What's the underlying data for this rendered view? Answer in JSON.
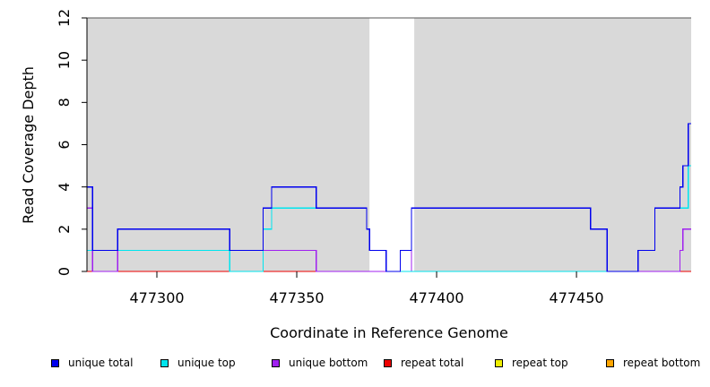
{
  "chart_data": {
    "type": "line",
    "title": "",
    "xlabel": "Coordinate in Reference Genome",
    "ylabel": "Read Coverage Depth",
    "xlim": [
      477275,
      477491
    ],
    "ylim": [
      0,
      12
    ],
    "x_ticks": [
      477300,
      477350,
      477400,
      477450
    ],
    "x_tick_labels": [
      "477300",
      "477350",
      "477400",
      "477450"
    ],
    "y_ticks": [
      0,
      2,
      4,
      6,
      8,
      10,
      12
    ],
    "y_tick_labels": [
      "0",
      "2",
      "4",
      "6",
      "8",
      "10",
      "12"
    ],
    "shaded_regions": [
      [
        477275,
        477376
      ],
      [
        477392,
        477491
      ]
    ],
    "shade_color": "#d9d9d9",
    "legend_position": "bottom",
    "series": [
      {
        "name": "unique total",
        "color": "#0000ee",
        "steps": [
          [
            477275,
            4
          ],
          [
            477277,
            1
          ],
          [
            477286,
            2
          ],
          [
            477326,
            1
          ],
          [
            477338,
            3
          ],
          [
            477341,
            4
          ],
          [
            477357,
            3
          ],
          [
            477375,
            2
          ],
          [
            477376,
            1
          ],
          [
            477382,
            0
          ],
          [
            477387,
            1
          ],
          [
            477391,
            3
          ],
          [
            477455,
            2
          ],
          [
            477461,
            0
          ],
          [
            477472,
            1
          ],
          [
            477478,
            3
          ],
          [
            477487,
            4
          ],
          [
            477488,
            5
          ],
          [
            477490,
            7
          ],
          [
            477491,
            7
          ]
        ]
      },
      {
        "name": "unique top",
        "color": "#00e5ee",
        "steps": [
          [
            477275,
            1
          ],
          [
            477286,
            1
          ],
          [
            477326,
            0
          ],
          [
            477338,
            2
          ],
          [
            477341,
            3
          ],
          [
            477357,
            3
          ],
          [
            477375,
            2
          ],
          [
            477376,
            1
          ],
          [
            477382,
            0
          ],
          [
            477391,
            0
          ],
          [
            477472,
            1
          ],
          [
            477478,
            3
          ],
          [
            477490,
            5
          ],
          [
            477491,
            5
          ]
        ]
      },
      {
        "name": "unique bottom",
        "color": "#a020f0",
        "steps": [
          [
            477275,
            3
          ],
          [
            477277,
            0
          ],
          [
            477286,
            1
          ],
          [
            477357,
            0
          ],
          [
            477382,
            0
          ],
          [
            477387,
            1
          ],
          [
            477391,
            0
          ],
          [
            477487,
            1
          ],
          [
            477488,
            2
          ],
          [
            477491,
            2
          ]
        ]
      },
      {
        "name": "repeat total",
        "color": "#ee0000",
        "steps": [
          [
            477275,
            0
          ],
          [
            477491,
            0
          ]
        ]
      },
      {
        "name": "repeat top",
        "color": "#eeee00",
        "steps": [
          [
            477275,
            0
          ],
          [
            477491,
            0
          ]
        ]
      },
      {
        "name": "repeat bottom",
        "color": "#ffa500",
        "steps": [
          [
            477275,
            0
          ],
          [
            477491,
            0
          ]
        ]
      }
    ]
  }
}
